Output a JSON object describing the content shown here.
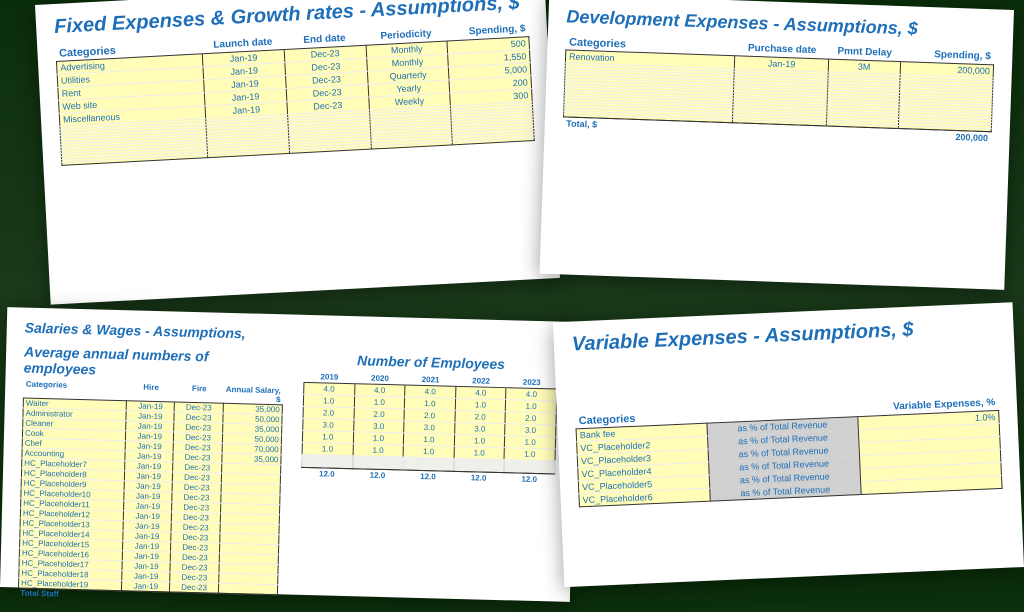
{
  "card1": {
    "title": "Fixed Expenses & Growth rates - Assumptions, $",
    "cat_label": "Categories",
    "headers": [
      "Launch date",
      "End date",
      "Periodicity",
      "Spending, $"
    ],
    "rows": [
      {
        "cat": "Advertising",
        "launch": "Jan-19",
        "end": "Dec-23",
        "period": "Monthly",
        "spend": "500"
      },
      {
        "cat": "Utilities",
        "launch": "Jan-19",
        "end": "Dec-23",
        "period": "Monthly",
        "spend": "1,550"
      },
      {
        "cat": "Rent",
        "launch": "Jan-19",
        "end": "Dec-23",
        "period": "Quarterly",
        "spend": "5,000"
      },
      {
        "cat": "Web site",
        "launch": "Jan-19",
        "end": "Dec-23",
        "period": "Yearly",
        "spend": "200"
      },
      {
        "cat": "Miscellaneous",
        "launch": "Jan-19",
        "end": "Dec-23",
        "period": "Weekly",
        "spend": "300"
      }
    ],
    "blank_rows": 13
  },
  "card2": {
    "title": "Development Expenses - Assumptions, $",
    "cat_label": "Categories",
    "headers": [
      "Purchase date",
      "Pmnt Delay",
      "Spending, $"
    ],
    "row": {
      "cat": "Renovation",
      "date": "Jan-19",
      "delay": "3M",
      "spend": "200,000"
    },
    "blank_rows": 18,
    "total_label": "Total, $",
    "total_value": "200,000"
  },
  "card3": {
    "title": "Salaries & Wages - Assumptions,",
    "sub1": "Average annual numbers of employees",
    "sub2": "Number of Employees",
    "left_headers": [
      "Categories",
      "Hire",
      "Fire",
      "Annual Salary, $"
    ],
    "years": [
      "2019",
      "2020",
      "2021",
      "2022",
      "2023"
    ],
    "staff": [
      {
        "cat": "Waiter",
        "hire": "Jan-19",
        "fire": "Dec-23",
        "sal": "35,000",
        "n": [
          "4.0",
          "4.0",
          "4.0",
          "4.0",
          "4.0"
        ]
      },
      {
        "cat": "Administrator",
        "hire": "Jan-19",
        "fire": "Dec-23",
        "sal": "50,000",
        "n": [
          "1.0",
          "1.0",
          "1.0",
          "1.0",
          "1.0"
        ]
      },
      {
        "cat": "Cleaner",
        "hire": "Jan-19",
        "fire": "Dec-23",
        "sal": "35,000",
        "n": [
          "2.0",
          "2.0",
          "2.0",
          "2.0",
          "2.0"
        ]
      },
      {
        "cat": "Cook",
        "hire": "Jan-19",
        "fire": "Dec-23",
        "sal": "50,000",
        "n": [
          "3.0",
          "3.0",
          "3.0",
          "3.0",
          "3.0"
        ]
      },
      {
        "cat": "Chef",
        "hire": "Jan-19",
        "fire": "Dec-23",
        "sal": "70,000",
        "n": [
          "1.0",
          "1.0",
          "1.0",
          "1.0",
          "1.0"
        ]
      },
      {
        "cat": "Accounting",
        "hire": "Jan-19",
        "fire": "Dec-23",
        "sal": "35,000",
        "n": [
          "1.0",
          "1.0",
          "1.0",
          "1.0",
          "1.0"
        ]
      },
      {
        "cat": "HC_Placeholder7",
        "hire": "Jan-19",
        "fire": "Dec-23",
        "sal": ""
      },
      {
        "cat": "HC_Placeholder8",
        "hire": "Jan-19",
        "fire": "Dec-23",
        "sal": ""
      },
      {
        "cat": "HC_Placeholder9",
        "hire": "Jan-19",
        "fire": "Dec-23",
        "sal": ""
      },
      {
        "cat": "HC_Placeholder10",
        "hire": "Jan-19",
        "fire": "Dec-23",
        "sal": ""
      },
      {
        "cat": "HC_Placeholder11",
        "hire": "Jan-19",
        "fire": "Dec-23",
        "sal": ""
      },
      {
        "cat": "HC_Placeholder12",
        "hire": "Jan-19",
        "fire": "Dec-23",
        "sal": ""
      },
      {
        "cat": "HC_Placeholder13",
        "hire": "Jan-19",
        "fire": "Dec-23",
        "sal": ""
      },
      {
        "cat": "HC_Placeholder14",
        "hire": "Jan-19",
        "fire": "Dec-23",
        "sal": ""
      },
      {
        "cat": "HC_Placeholder15",
        "hire": "Jan-19",
        "fire": "Dec-23",
        "sal": ""
      },
      {
        "cat": "HC_Placeholder16",
        "hire": "Jan-19",
        "fire": "Dec-23",
        "sal": ""
      },
      {
        "cat": "HC_Placeholder17",
        "hire": "Jan-19",
        "fire": "Dec-23",
        "sal": ""
      },
      {
        "cat": "HC_Placeholder18",
        "hire": "Jan-19",
        "fire": "Dec-23",
        "sal": ""
      },
      {
        "cat": "HC_Placeholder19",
        "hire": "Jan-19",
        "fire": "Dec-23",
        "sal": ""
      }
    ],
    "total_label": "Total Staff",
    "totals": [
      "12.0",
      "12.0",
      "12.0",
      "12.0",
      "12.0"
    ]
  },
  "card4": {
    "title": "Variable Expenses - Assumptions, $",
    "cat_label": "Categories",
    "exp_label": "Variable Expenses, %",
    "revenue_text": "as % of Total Revenue",
    "rows": [
      {
        "cat": "Bank fee",
        "pct": "1.0%"
      },
      {
        "cat": "VC_Placeholder2",
        "pct": ""
      },
      {
        "cat": "VC_Placeholder3",
        "pct": ""
      },
      {
        "cat": "VC_Placeholder4",
        "pct": ""
      },
      {
        "cat": "VC_Placeholder5",
        "pct": ""
      },
      {
        "cat": "VC_Placeholder6",
        "pct": ""
      }
    ]
  }
}
